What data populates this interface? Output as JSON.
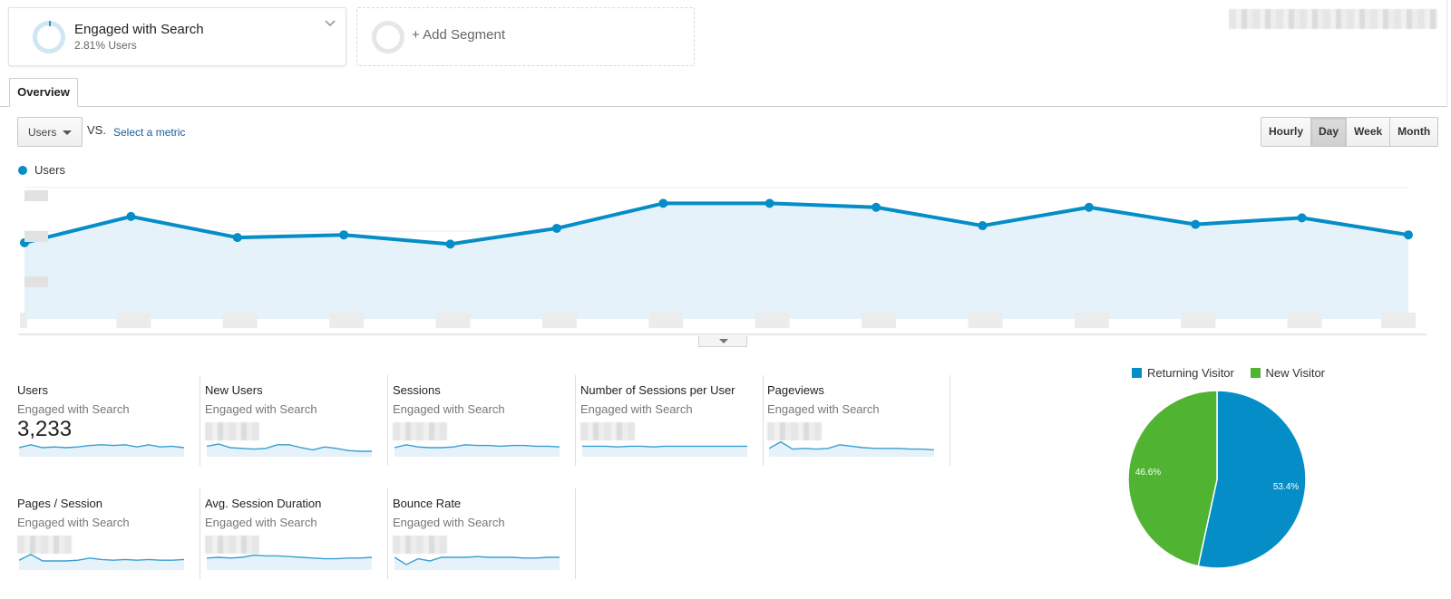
{
  "segments": {
    "active": {
      "title": "Engaged with Search",
      "subtitle": "2.81% Users"
    },
    "add_label": "+ Add Segment"
  },
  "tabs": [
    {
      "label": "Overview"
    }
  ],
  "controls": {
    "metric_select": "Users",
    "vs_label": "VS.",
    "select_metric_link": "Select a metric",
    "ranges": [
      "Hourly",
      "Day",
      "Week",
      "Month"
    ],
    "active_range": "Day"
  },
  "colors": {
    "accent": "#058dc7",
    "new_visitor": "#50b432",
    "area_fill": "#e5f2fa",
    "link": "#1a5f9e"
  },
  "chart_data": [
    {
      "type": "area",
      "series": [
        {
          "name": "Users",
          "values": [
            0.58,
            0.78,
            0.62,
            0.64,
            0.57,
            0.69,
            0.88,
            0.88,
            0.85,
            0.71,
            0.85,
            0.72,
            0.77,
            0.64
          ]
        }
      ],
      "ylim": [
        0,
        1
      ],
      "grid": true,
      "legend": "top-left"
    },
    {
      "type": "pie",
      "categories": [
        "Returning Visitor",
        "New Visitor"
      ],
      "values": [
        53.4,
        46.6
      ],
      "labels": [
        "53.4%",
        "46.6%"
      ],
      "colors": [
        "#058dc7",
        "#50b432"
      ],
      "legend": "top"
    }
  ],
  "scorecards": [
    {
      "name": "Users",
      "segment": "Engaged with Search",
      "value": "3,233",
      "spark": [
        0.5,
        0.7,
        0.5,
        0.55,
        0.5,
        0.55,
        0.65,
        0.7,
        0.65,
        0.7,
        0.55,
        0.7,
        0.55,
        0.6,
        0.5
      ]
    },
    {
      "name": "New Users",
      "segment": "Engaged with Search",
      "value": "",
      "spark": [
        0.6,
        0.75,
        0.5,
        0.45,
        0.4,
        0.45,
        0.7,
        0.7,
        0.5,
        0.35,
        0.55,
        0.45,
        0.3,
        0.25,
        0.25
      ]
    },
    {
      "name": "Sessions",
      "segment": "Engaged with Search",
      "value": "",
      "spark": [
        0.5,
        0.7,
        0.55,
        0.5,
        0.5,
        0.55,
        0.7,
        0.65,
        0.65,
        0.6,
        0.65,
        0.65,
        0.6,
        0.6,
        0.55
      ]
    },
    {
      "name": "Number of Sessions per User",
      "segment": "Engaged with Search",
      "value": "",
      "spark": [
        0.6,
        0.6,
        0.6,
        0.55,
        0.6,
        0.6,
        0.55,
        0.6,
        0.6,
        0.6,
        0.6,
        0.6,
        0.6,
        0.6,
        0.6
      ]
    },
    {
      "name": "Pageviews",
      "segment": "Engaged with Search",
      "value": "",
      "spark": [
        0.45,
        0.9,
        0.4,
        0.45,
        0.4,
        0.45,
        0.7,
        0.6,
        0.5,
        0.45,
        0.45,
        0.45,
        0.4,
        0.4,
        0.35
      ]
    },
    {
      "name": "Pages / Session",
      "segment": "Engaged with Search",
      "value": "",
      "spark": [
        0.55,
        0.95,
        0.5,
        0.5,
        0.5,
        0.55,
        0.7,
        0.6,
        0.55,
        0.6,
        0.55,
        0.6,
        0.55,
        0.55,
        0.6
      ]
    },
    {
      "name": "Avg. Session Duration",
      "segment": "Engaged with Search",
      "value": "",
      "spark": [
        0.7,
        0.75,
        0.7,
        0.75,
        0.9,
        0.85,
        0.85,
        0.8,
        0.75,
        0.7,
        0.65,
        0.65,
        0.7,
        0.7,
        0.75
      ]
    },
    {
      "name": "Bounce Rate",
      "segment": "Engaged with Search",
      "value": "",
      "spark": [
        0.75,
        0.25,
        0.65,
        0.5,
        0.75,
        0.75,
        0.75,
        0.8,
        0.75,
        0.75,
        0.75,
        0.7,
        0.7,
        0.75,
        0.75
      ]
    }
  ]
}
